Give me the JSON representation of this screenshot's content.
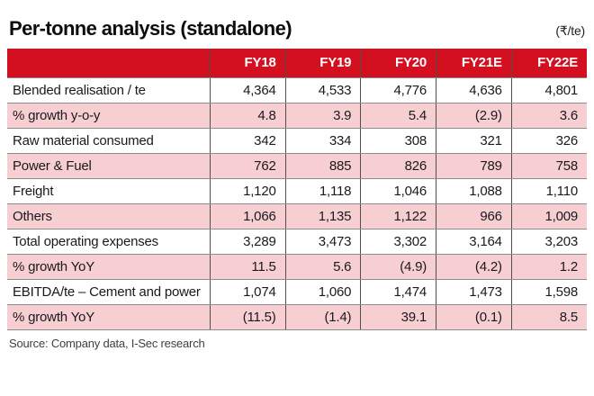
{
  "header": {
    "title": "Per-tonne analysis (standalone)",
    "unit": "(₹/te)"
  },
  "table": {
    "columns": [
      "",
      "FY18",
      "FY19",
      "FY20",
      "FY21E",
      "FY22E"
    ],
    "rows": [
      {
        "label": "Blended realisation / te",
        "values": [
          "4,364",
          "4,533",
          "4,776",
          "4,636",
          "4,801"
        ]
      },
      {
        "label": "% growth y-o-y",
        "values": [
          "4.8",
          "3.9",
          "5.4",
          "(2.9)",
          "3.6"
        ]
      },
      {
        "label": "Raw material consumed",
        "values": [
          "342",
          "334",
          "308",
          "321",
          "326"
        ]
      },
      {
        "label": "Power & Fuel",
        "values": [
          "762",
          "885",
          "826",
          "789",
          "758"
        ]
      },
      {
        "label": "Freight",
        "values": [
          "1,120",
          "1,118",
          "1,046",
          "1,088",
          "1,110"
        ]
      },
      {
        "label": "Others",
        "values": [
          "1,066",
          "1,135",
          "1,122",
          "966",
          "1,009"
        ]
      },
      {
        "label": "Total operating expenses",
        "values": [
          "3,289",
          "3,473",
          "3,302",
          "3,164",
          "3,203"
        ]
      },
      {
        "label": "% growth YoY",
        "values": [
          "11.5",
          "5.6",
          "(4.9)",
          "(4.2)",
          "1.2"
        ]
      },
      {
        "label": "EBITDA/te – Cement and power",
        "values": [
          "1,074",
          "1,060",
          "1,474",
          "1,473",
          "1,598"
        ]
      },
      {
        "label": "% growth YoY",
        "values": [
          "(11.5)",
          "(1.4)",
          "39.1",
          "(0.1)",
          "8.5"
        ]
      }
    ]
  },
  "footer": {
    "source": "Source:  Company data, I-Sec research"
  },
  "colors": {
    "header_bg": "#d2101f",
    "header_fg": "#ffffff",
    "row_alt_bg": "#f7cfd2",
    "row_bg": "#ffffff",
    "grid_v": "#4f4f4f",
    "grid_h": "#8c8c8c"
  },
  "chart_data": {
    "type": "table",
    "title": "Per-tonne analysis (standalone)",
    "unit": "₹/te",
    "columns": [
      "FY18",
      "FY19",
      "FY20",
      "FY21E",
      "FY22E"
    ],
    "rows": [
      {
        "label": "Blended realisation / te",
        "values": [
          4364,
          4533,
          4776,
          4636,
          4801
        ]
      },
      {
        "label": "% growth y-o-y",
        "values": [
          4.8,
          3.9,
          5.4,
          -2.9,
          3.6
        ]
      },
      {
        "label": "Raw material consumed",
        "values": [
          342,
          334,
          308,
          321,
          326
        ]
      },
      {
        "label": "Power & Fuel",
        "values": [
          762,
          885,
          826,
          789,
          758
        ]
      },
      {
        "label": "Freight",
        "values": [
          1120,
          1118,
          1046,
          1088,
          1110
        ]
      },
      {
        "label": "Others",
        "values": [
          1066,
          1135,
          1122,
          966,
          1009
        ]
      },
      {
        "label": "Total operating expenses",
        "values": [
          3289,
          3473,
          3302,
          3164,
          3203
        ]
      },
      {
        "label": "% growth YoY",
        "values": [
          11.5,
          5.6,
          -4.9,
          -4.2,
          1.2
        ]
      },
      {
        "label": "EBITDA/te – Cement and power",
        "values": [
          1074,
          1060,
          1474,
          1473,
          1598
        ]
      },
      {
        "label": "% growth YoY",
        "values": [
          -11.5,
          -1.4,
          39.1,
          -0.1,
          8.5
        ]
      }
    ],
    "source_note": "Source: Company data, I-Sec research"
  }
}
